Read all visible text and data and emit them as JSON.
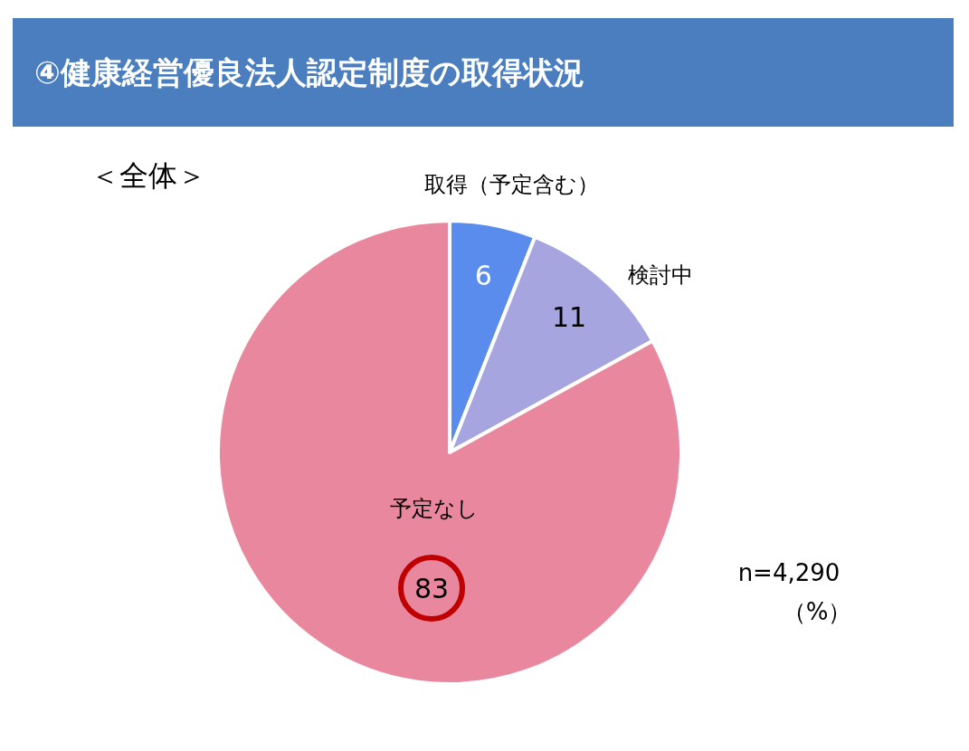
{
  "chart_data": {
    "type": "pie",
    "title": "④健康経営優良法人認定制度の取得状況",
    "subtitle": "＜全体＞",
    "categories": [
      "取得（予定含む）",
      "検討中",
      "予定なし"
    ],
    "values": [
      6,
      11,
      83
    ],
    "colors": [
      "#5a8cee",
      "#a6a5df",
      "#e9879e"
    ],
    "data_labels": true,
    "annotations": [
      "n=4,290",
      "（%）"
    ]
  }
}
